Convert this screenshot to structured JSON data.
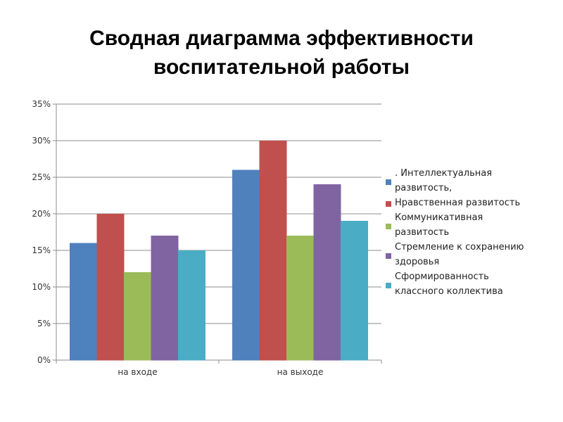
{
  "title_lines": [
    "Сводная диаграмма эффективности",
    "воспитательной работы"
  ],
  "chart_data": {
    "type": "bar",
    "categories": [
      "на входе",
      "на выходе"
    ],
    "series": [
      {
        "name": ". Интеллектуальная\nразвитость,",
        "color": "#4F81BD",
        "values": [
          16,
          26
        ]
      },
      {
        "name": "Нравственная развитость",
        "color": "#C0504D",
        "values": [
          20,
          30
        ]
      },
      {
        "name": "Коммуникативная\nразвитость",
        "color": "#9BBB59",
        "values": [
          12,
          17
        ]
      },
      {
        "name": "Стремление к сохранению\nздоровья",
        "color": "#8064A2",
        "values": [
          17,
          24
        ]
      },
      {
        "name": "Сформированность\nклассного коллектива",
        "color": "#4BACC6",
        "values": [
          15,
          19
        ]
      }
    ],
    "ylim": [
      0,
      35
    ],
    "yticks": [
      "0%",
      "5%",
      "10%",
      "15%",
      "20%",
      "25%",
      "30%",
      "35%"
    ],
    "unit": "%",
    "grid": true,
    "legend_position": "right"
  }
}
